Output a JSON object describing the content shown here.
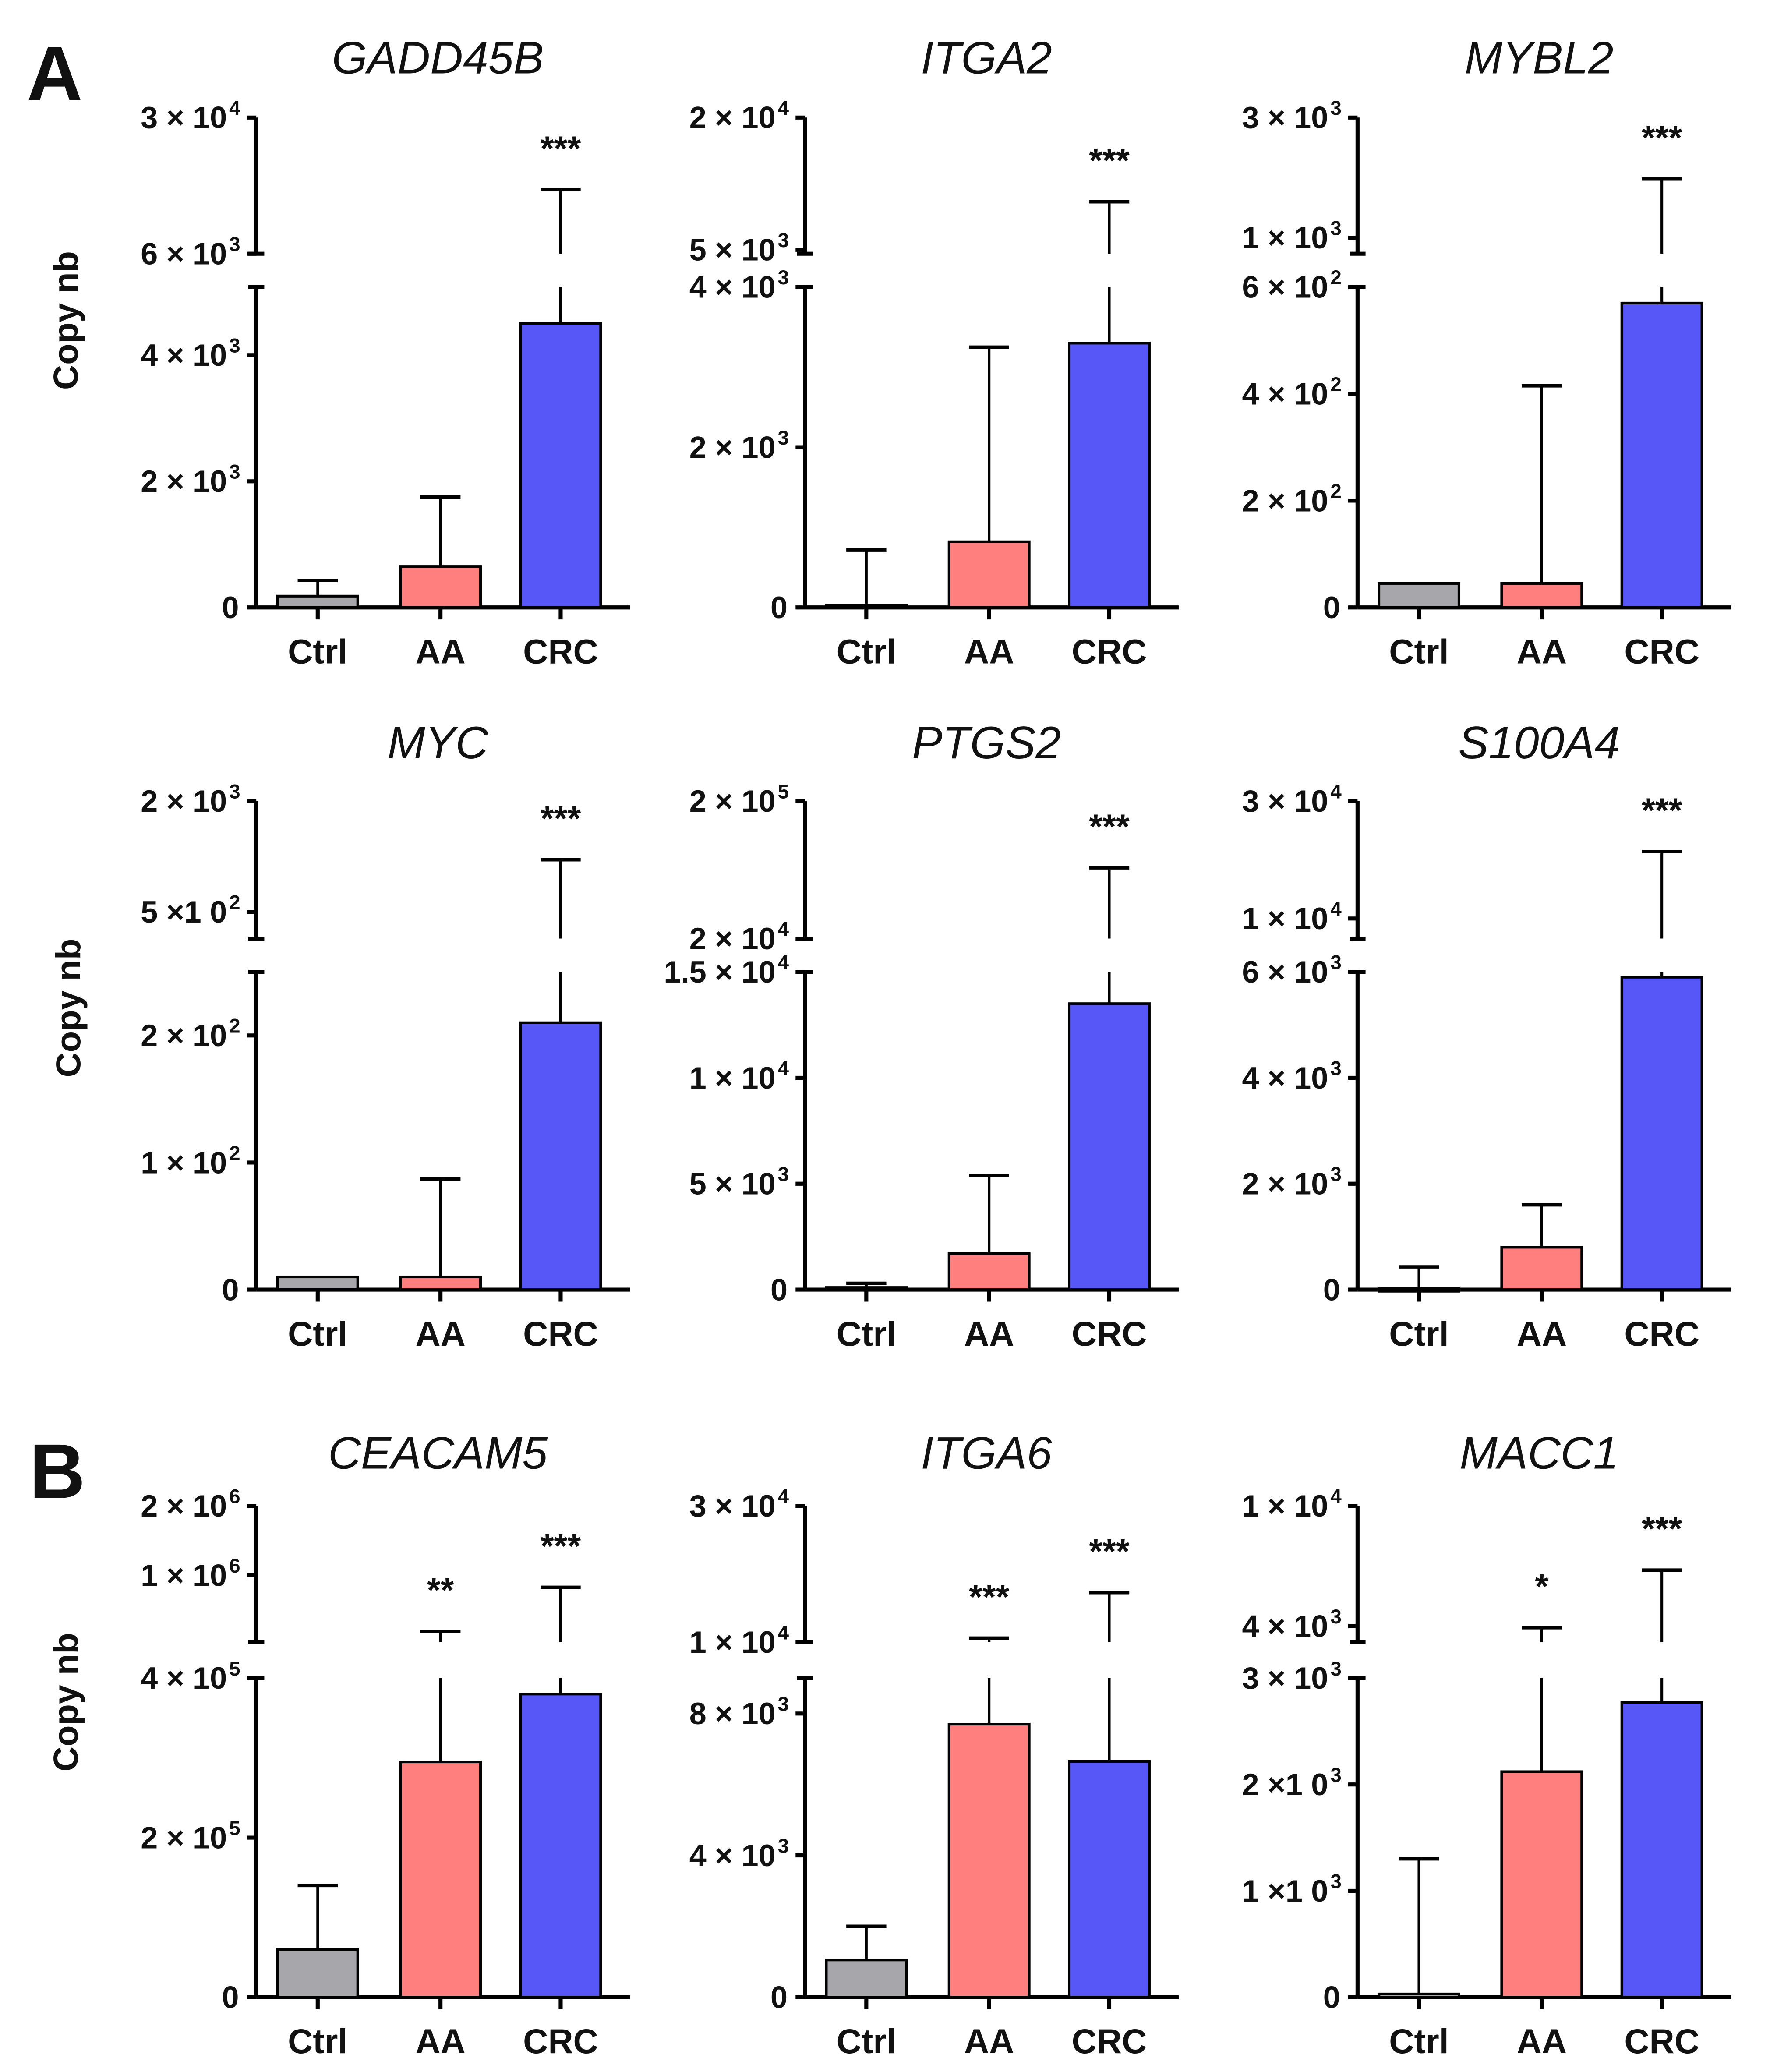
{
  "panel_labels": [
    "A",
    "B"
  ],
  "ylabel": "Copy nb",
  "colors": {
    "Ctrl": "#a7a7ab",
    "AA": "#ff7f7f",
    "CRC": "#5757f7"
  },
  "chart_data": [
    {
      "type": "bar",
      "title": "GADD45B",
      "categories": [
        "Ctrl",
        "AA",
        "CRC"
      ],
      "values": [
        180,
        650,
        4500
      ],
      "error_upper": [
        430,
        1750,
        12800
      ],
      "stars": [
        "",
        "",
        "***"
      ],
      "lower_range": [
        0,
        5080
      ],
      "lower_ticks": [
        {
          "v": 0,
          "m": "0"
        },
        {
          "v": 2000,
          "m": "2 × 10",
          "e": "3"
        },
        {
          "v": 4000,
          "m": "4 × 10",
          "e": "3"
        }
      ],
      "upper_range": [
        6000,
        30000
      ],
      "upper_scale": "log",
      "upper_ticks": [
        {
          "v": 6000,
          "m": "6 × 10",
          "e": "3"
        },
        {
          "v": 30000,
          "m": "3 × 10",
          "e": "4"
        }
      ]
    },
    {
      "type": "bar",
      "title": "ITGA2",
      "categories": [
        "Ctrl",
        "AA",
        "CRC"
      ],
      "values": [
        30,
        820,
        3300
      ],
      "error_upper": [
        720,
        3250,
        8270
      ],
      "stars": [
        "",
        "",
        "***"
      ],
      "lower_range": [
        0,
        4000
      ],
      "lower_ticks": [
        {
          "v": 0,
          "m": "0"
        },
        {
          "v": 2000,
          "m": "2 × 10",
          "e": "3"
        },
        {
          "v": 4000,
          "m": "4 × 10",
          "e": "3"
        }
      ],
      "upper_range": [
        4800,
        20000
      ],
      "upper_scale": "log",
      "upper_ticks": [
        {
          "v": 5000,
          "m": "5 × 10",
          "e": "3"
        },
        {
          "v": 20000,
          "m": "2 × 10",
          "e": "4"
        }
      ]
    },
    {
      "type": "bar",
      "title": "MYBL2",
      "categories": [
        "Ctrl",
        "AA",
        "CRC"
      ],
      "values": [
        45,
        45,
        570
      ],
      "error_upper": [
        45,
        415,
        1710
      ],
      "stars": [
        "",
        "",
        "***"
      ],
      "lower_range": [
        0,
        600
      ],
      "lower_ticks": [
        {
          "v": 0,
          "m": "0"
        },
        {
          "v": 200,
          "m": "2 × 10",
          "e": "2"
        },
        {
          "v": 400,
          "m": "4 × 10",
          "e": "2"
        },
        {
          "v": 600,
          "m": "6 × 10",
          "e": "2"
        }
      ],
      "upper_range": [
        864,
        3000
      ],
      "upper_scale": "log",
      "upper_ticks": [
        {
          "v": 1000,
          "m": "1 × 10",
          "e": "3"
        },
        {
          "v": 3000,
          "m": "3 × 10",
          "e": "3"
        }
      ]
    },
    {
      "type": "bar",
      "title": "MYC",
      "categories": [
        "Ctrl",
        "AA",
        "CRC"
      ],
      "values": [
        10,
        10,
        210
      ],
      "error_upper": [
        10,
        87,
        959
      ],
      "stars": [
        "",
        "",
        "***"
      ],
      "lower_range": [
        0,
        250
      ],
      "lower_ticks": [
        {
          "v": 0,
          "m": "0"
        },
        {
          "v": 100,
          "m": "1 × 10",
          "e": "2"
        },
        {
          "v": 200,
          "m": "2 × 10",
          "e": "2"
        }
      ],
      "upper_range": [
        358,
        2000
      ],
      "upper_scale": "log",
      "upper_ticks": [
        {
          "v": 500,
          "m": "5 ×1 0",
          "e": "2"
        },
        {
          "v": 2000,
          "m": "2 × 10",
          "e": "3"
        }
      ]
    },
    {
      "type": "bar",
      "title": "PTGS2",
      "categories": [
        "Ctrl",
        "AA",
        "CRC"
      ],
      "values": [
        100,
        1700,
        13500
      ],
      "error_upper": [
        300,
        5400,
        65400
      ],
      "stars": [
        "",
        "",
        "***"
      ],
      "lower_range": [
        0,
        15000
      ],
      "lower_ticks": [
        {
          "v": 0,
          "m": "0"
        },
        {
          "v": 5000,
          "m": "5 × 10",
          "e": "3"
        },
        {
          "v": 10000,
          "m": "1 × 10",
          "e": "4"
        },
        {
          "v": 15000,
          "m": "1.5 × 10",
          "e": "4"
        }
      ],
      "upper_range": [
        20000,
        200000
      ],
      "upper_scale": "log",
      "upper_ticks": [
        {
          "v": 20000,
          "m": "2 × 10",
          "e": "4"
        },
        {
          "v": 200000,
          "m": "2 × 10",
          "e": "5"
        }
      ]
    },
    {
      "type": "bar",
      "title": "S100A4",
      "categories": [
        "Ctrl",
        "AA",
        "CRC"
      ],
      "values": [
        20,
        800,
        5900
      ],
      "error_upper": [
        430,
        1600,
        18700
      ],
      "stars": [
        "",
        "",
        "***"
      ],
      "lower_range": [
        0,
        6000
      ],
      "lower_ticks": [
        {
          "v": 0,
          "m": "0"
        },
        {
          "v": 2000,
          "m": "2 × 10",
          "e": "3"
        },
        {
          "v": 4000,
          "m": "4 × 10",
          "e": "3"
        },
        {
          "v": 6000,
          "m": "6 × 10",
          "e": "3"
        }
      ],
      "upper_range": [
        8290,
        30000
      ],
      "upper_scale": "log",
      "upper_ticks": [
        {
          "v": 10000,
          "m": "1 × 10",
          "e": "4"
        },
        {
          "v": 30000,
          "m": "3 × 10",
          "e": "4"
        }
      ]
    },
    {
      "type": "bar",
      "title": "CEACAM5",
      "categories": [
        "Ctrl",
        "AA",
        "CRC"
      ],
      "values": [
        60000,
        295000,
        380000
      ],
      "error_upper": [
        140000,
        571000,
        887000
      ],
      "stars": [
        "",
        "**",
        "***"
      ],
      "lower_range": [
        0,
        400000
      ],
      "lower_ticks": [
        {
          "v": 0,
          "m": "0"
        },
        {
          "v": 200000,
          "m": "2 × 10",
          "e": "5"
        },
        {
          "v": 400000,
          "m": "4 × 10",
          "e": "5"
        }
      ],
      "upper_range": [
        513000,
        2000000
      ],
      "upper_scale": "log",
      "upper_ticks": [
        {
          "v": 1000000,
          "m": "1 × 10",
          "e": "6"
        },
        {
          "v": 2000000,
          "m": "2 × 10",
          "e": "6"
        }
      ]
    },
    {
      "type": "bar",
      "title": "ITGA6",
      "categories": [
        "Ctrl",
        "AA",
        "CRC"
      ],
      "values": [
        1050,
        7700,
        6650
      ],
      "error_upper": [
        2000,
        10330,
        14900
      ],
      "stars": [
        "",
        "***",
        "***"
      ],
      "lower_range": [
        0,
        9000
      ],
      "lower_ticks": [
        {
          "v": 0,
          "m": "0"
        },
        {
          "v": 4000,
          "m": "4 × 10",
          "e": "3"
        },
        {
          "v": 8000,
          "m": "8 × 10",
          "e": "3"
        }
      ],
      "upper_range": [
        10000,
        30000
      ],
      "upper_scale": "log",
      "upper_ticks": [
        {
          "v": 10000,
          "m": "1 × 10",
          "e": "4"
        },
        {
          "v": 30000,
          "m": "3 × 10",
          "e": "4"
        }
      ]
    },
    {
      "type": "bar",
      "title": "MACC1",
      "categories": [
        "Ctrl",
        "AA",
        "CRC"
      ],
      "values": [
        30,
        2120,
        2770
      ],
      "error_upper": [
        1300,
        3950,
        6130
      ],
      "stars": [
        "",
        "*",
        "***"
      ],
      "lower_range": [
        0,
        3000
      ],
      "lower_ticks": [
        {
          "v": 0,
          "m": "0"
        },
        {
          "v": 1000,
          "m": "1 ×1 0",
          "e": "3"
        },
        {
          "v": 2000,
          "m": "2 ×1 0",
          "e": "3"
        },
        {
          "v": 3000,
          "m": "3 × 10",
          "e": "3"
        }
      ],
      "upper_range": [
        3540,
        10000
      ],
      "upper_scale": "log",
      "upper_ticks": [
        {
          "v": 4000,
          "m": "4 × 10",
          "e": "3"
        },
        {
          "v": 10000,
          "m": "1 × 10",
          "e": "4"
        }
      ]
    }
  ]
}
